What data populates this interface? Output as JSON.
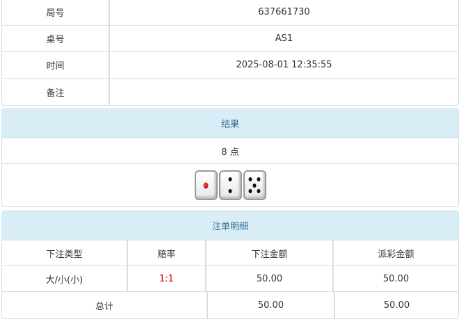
{
  "info": [
    {
      "label": "局号",
      "value": "637661730"
    },
    {
      "label": "桌号",
      "value": "AS1"
    },
    {
      "label": "时间",
      "value": "2025-08-01 12:35:55"
    },
    {
      "label": "备注",
      "value": ""
    }
  ],
  "result": {
    "title": "结果",
    "points": "8 点",
    "dice": [
      1,
      2,
      5
    ]
  },
  "bets": {
    "title": "注单明细",
    "headers": [
      "下注类型",
      "赔率",
      "下注金额",
      "派彩金额"
    ],
    "rows": [
      {
        "type": "大/小(小)",
        "odds": "1:1",
        "amount": "50.00",
        "payout": "50.00"
      }
    ],
    "total": {
      "label": "总计",
      "amount": "50.00",
      "payout": "50.00"
    },
    "odds_color": "#e00000"
  }
}
